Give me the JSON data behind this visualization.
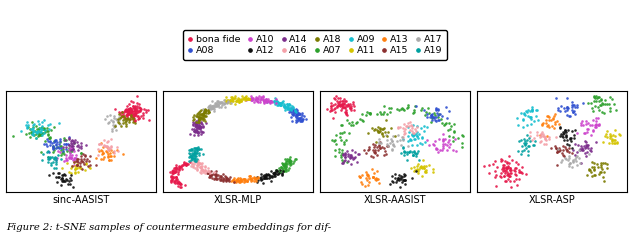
{
  "legend_row0": [
    {
      "label": "bona fide",
      "color": "#e6194b"
    },
    {
      "label": "A08",
      "color": "#3050d0"
    },
    {
      "label": "A10",
      "color": "#cc44cc"
    },
    {
      "label": "A12",
      "color": "#111111"
    },
    {
      "label": "A14",
      "color": "#7b2d8b"
    },
    {
      "label": "A16",
      "color": "#f4a0a8"
    },
    {
      "label": "A18",
      "color": "#7b7b00"
    }
  ],
  "legend_row1": [
    {
      "label": "A07",
      "color": "#2ca02c"
    },
    {
      "label": "A09",
      "color": "#17becf"
    },
    {
      "label": "A11",
      "color": "#d4c400"
    },
    {
      "label": "A13",
      "color": "#ff7f0e"
    },
    {
      "label": "A15",
      "color": "#8b3030"
    },
    {
      "label": "A17",
      "color": "#aaaaaa"
    },
    {
      "label": "A19",
      "color": "#00a0a0"
    }
  ],
  "subplot_labels": [
    "sinc-AASIST",
    "XLSR-MLP",
    "XLSR-AASIST",
    "XLSR-ASP"
  ],
  "caption": "Figure 2: t-SNE samples of countermeasure embeddings for dif-",
  "fig_width": 6.3,
  "fig_height": 2.34,
  "dpi": 100,
  "colors": {
    "bona fide": "#e6194b",
    "A07": "#2ca02c",
    "A08": "#3050d0",
    "A09": "#17becf",
    "A10": "#cc44cc",
    "A11": "#d4c400",
    "A12": "#111111",
    "A13": "#ff7f0e",
    "A14": "#7b2d8b",
    "A15": "#8b3030",
    "A16": "#f4a0a8",
    "A17": "#aaaaaa",
    "A18": "#7b7b00",
    "A19": "#00a0a0"
  }
}
